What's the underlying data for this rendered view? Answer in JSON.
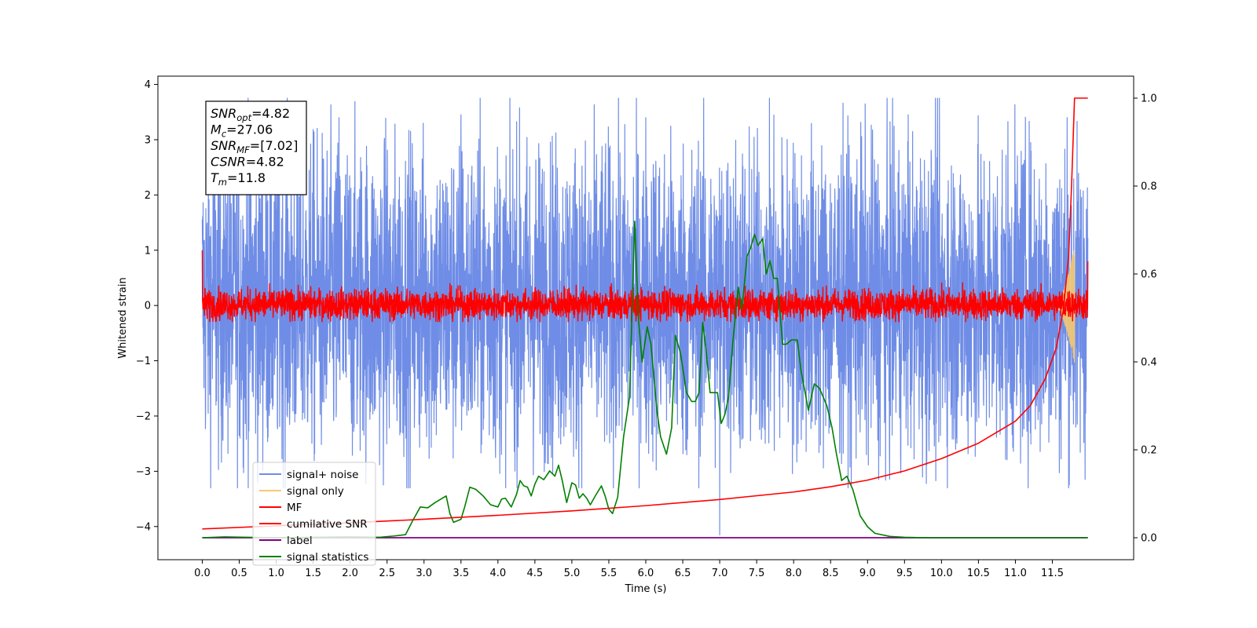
{
  "chart_data": {
    "type": "line",
    "xlabel": "Time (s)",
    "ylabel": "Whitened strain",
    "xlim": [
      -0.6,
      12.6
    ],
    "ylim": [
      -4.6,
      4.15
    ],
    "y2lim": [
      -0.05,
      1.05
    ],
    "xticks": [
      0.0,
      0.5,
      1.0,
      1.5,
      2.0,
      2.5,
      3.0,
      3.5,
      4.0,
      4.5,
      5.0,
      5.5,
      6.0,
      6.5,
      7.0,
      7.5,
      8.0,
      8.5,
      9.0,
      9.5,
      10.0,
      10.5,
      11.0,
      11.5
    ],
    "xtick_labels": [
      "0.0",
      "0.5",
      "1.0",
      "1.5",
      "2.0",
      "2.5",
      "3.0",
      "3.5",
      "4.0",
      "4.5",
      "5.0",
      "5.5",
      "6.0",
      "6.5",
      "7.0",
      "7.5",
      "8.0",
      "8.5",
      "9.0",
      "9.5",
      "10.0",
      "10.5",
      "11.0",
      "11.5"
    ],
    "yticks": [
      -4,
      -3,
      -2,
      -1,
      0,
      1,
      2,
      3,
      4
    ],
    "ytick_labels": [
      "−4",
      "−3",
      "−2",
      "−1",
      "0",
      "1",
      "2",
      "3",
      "4"
    ],
    "y2ticks": [
      0.0,
      0.2,
      0.4,
      0.6,
      0.8,
      1.0
    ],
    "y2tick_labels": [
      "0.0",
      "0.2",
      "0.4",
      "0.6",
      "0.8",
      "1.0"
    ],
    "grid": false,
    "legend_position": "lower-left",
    "annotation_box": {
      "position": "top-left",
      "lines": [
        {
          "sym": "SNR",
          "sub": "opt",
          "rest": "=4.82"
        },
        {
          "sym": "M",
          "sub": "c",
          "rest": "=27.06"
        },
        {
          "sym": "SNR",
          "sub": "MF",
          "rest": "=[7.02]"
        },
        {
          "sym": "CSNR",
          "sub": "",
          "rest": "=4.82"
        },
        {
          "sym": "T",
          "sub": "m",
          "rest": "=11.8"
        }
      ]
    },
    "series": [
      {
        "name": "signal+ noise",
        "axis": "left",
        "color": "#6f8de6",
        "style": "noise",
        "x_range": [
          0.0,
          11.98
        ],
        "typical_range": [
          -2.2,
          2.4
        ],
        "peak_range": [
          -3.3,
          3.75
        ],
        "notable_points": [
          {
            "x": 0.62,
            "y": 3.75
          },
          {
            "x": 1.85,
            "y": 3.4
          },
          {
            "x": 3.5,
            "y": 3.45
          },
          {
            "x": 6.0,
            "y": 3.4
          },
          {
            "x": 7.0,
            "y": -4.15
          },
          {
            "x": 9.55,
            "y": 3.45
          },
          {
            "x": 11.7,
            "y": 3.4
          }
        ]
      },
      {
        "name": "signal only",
        "axis": "left",
        "color": "#f5c971",
        "style": "chirp",
        "x_range": [
          11.55,
          11.8
        ],
        "peak_amplitude": 1.05
      },
      {
        "name": "MF",
        "axis": "left",
        "color": "#ff0000",
        "style": "noise",
        "x_range": [
          0.0,
          11.98
        ],
        "typical_range": [
          -0.18,
          0.22
        ],
        "peak_range": [
          -0.3,
          0.55
        ],
        "notable_points": [
          {
            "x": 0.0,
            "y": 1.0
          },
          {
            "x": 11.98,
            "y": 0.8
          }
        ]
      },
      {
        "name": "cumilative SNR",
        "axis": "right",
        "color": "#ff0000",
        "x": [
          0.0,
          1.0,
          2.0,
          3.0,
          4.0,
          5.0,
          6.0,
          7.0,
          8.0,
          8.5,
          9.0,
          9.5,
          10.0,
          10.5,
          11.0,
          11.2,
          11.4,
          11.55,
          11.65,
          11.72,
          11.76,
          11.8,
          11.98
        ],
        "values": [
          0.02,
          0.027,
          0.034,
          0.042,
          0.051,
          0.061,
          0.073,
          0.087,
          0.104,
          0.116,
          0.131,
          0.152,
          0.18,
          0.215,
          0.265,
          0.3,
          0.36,
          0.43,
          0.52,
          0.64,
          0.8,
          1.0,
          1.0
        ]
      },
      {
        "name": "label",
        "axis": "right",
        "color": "#800080",
        "x": [
          0.0,
          11.98
        ],
        "values": [
          0.0,
          0.0
        ]
      },
      {
        "name": "signal statistics",
        "axis": "right",
        "color": "#008000",
        "x": [
          0.0,
          0.3,
          0.6,
          1.0,
          1.5,
          2.0,
          2.4,
          2.6,
          2.75,
          2.85,
          2.95,
          3.05,
          3.15,
          3.25,
          3.3,
          3.35,
          3.4,
          3.5,
          3.55,
          3.62,
          3.7,
          3.8,
          3.9,
          4.0,
          4.05,
          4.1,
          4.18,
          4.25,
          4.3,
          4.35,
          4.4,
          4.45,
          4.5,
          4.55,
          4.62,
          4.7,
          4.77,
          4.82,
          4.87,
          4.93,
          5.0,
          5.05,
          5.1,
          5.15,
          5.2,
          5.25,
          5.32,
          5.4,
          5.45,
          5.5,
          5.55,
          5.62,
          5.7,
          5.78,
          5.85,
          5.9,
          5.95,
          6.02,
          6.07,
          6.15,
          6.2,
          6.28,
          6.35,
          6.4,
          6.47,
          6.55,
          6.62,
          6.67,
          6.72,
          6.77,
          6.82,
          6.87,
          6.92,
          6.97,
          7.02,
          7.07,
          7.12,
          7.18,
          7.25,
          7.3,
          7.37,
          7.42,
          7.47,
          7.52,
          7.58,
          7.63,
          7.68,
          7.73,
          7.78,
          7.85,
          7.9,
          7.97,
          8.05,
          8.1,
          8.2,
          8.28,
          8.35,
          8.4,
          8.45,
          8.52,
          8.58,
          8.65,
          8.72,
          8.8,
          8.9,
          9.0,
          9.1,
          9.3,
          9.5,
          9.8,
          10.2,
          11.0,
          11.5,
          11.98
        ],
        "values": [
          0.0,
          0.002,
          0.001,
          0.0,
          0.001,
          0.002,
          0.001,
          0.004,
          0.007,
          0.04,
          0.07,
          0.068,
          0.08,
          0.09,
          0.095,
          0.055,
          0.035,
          0.042,
          0.07,
          0.115,
          0.11,
          0.095,
          0.075,
          0.07,
          0.088,
          0.09,
          0.07,
          0.098,
          0.13,
          0.118,
          0.115,
          0.095,
          0.122,
          0.14,
          0.132,
          0.152,
          0.14,
          0.165,
          0.13,
          0.08,
          0.125,
          0.12,
          0.09,
          0.1,
          0.09,
          0.075,
          0.096,
          0.118,
          0.095,
          0.065,
          0.055,
          0.092,
          0.23,
          0.32,
          0.72,
          0.5,
          0.4,
          0.48,
          0.44,
          0.29,
          0.23,
          0.19,
          0.25,
          0.46,
          0.42,
          0.33,
          0.31,
          0.31,
          0.33,
          0.49,
          0.42,
          0.33,
          0.33,
          0.33,
          0.26,
          0.28,
          0.32,
          0.45,
          0.57,
          0.52,
          0.64,
          0.66,
          0.69,
          0.665,
          0.68,
          0.6,
          0.63,
          0.59,
          0.59,
          0.44,
          0.44,
          0.45,
          0.45,
          0.38,
          0.29,
          0.35,
          0.34,
          0.32,
          0.3,
          0.25,
          0.19,
          0.13,
          0.14,
          0.11,
          0.05,
          0.025,
          0.01,
          0.003,
          0.001,
          0.0,
          0.0,
          0.0,
          0.0,
          0.0
        ]
      }
    ]
  }
}
